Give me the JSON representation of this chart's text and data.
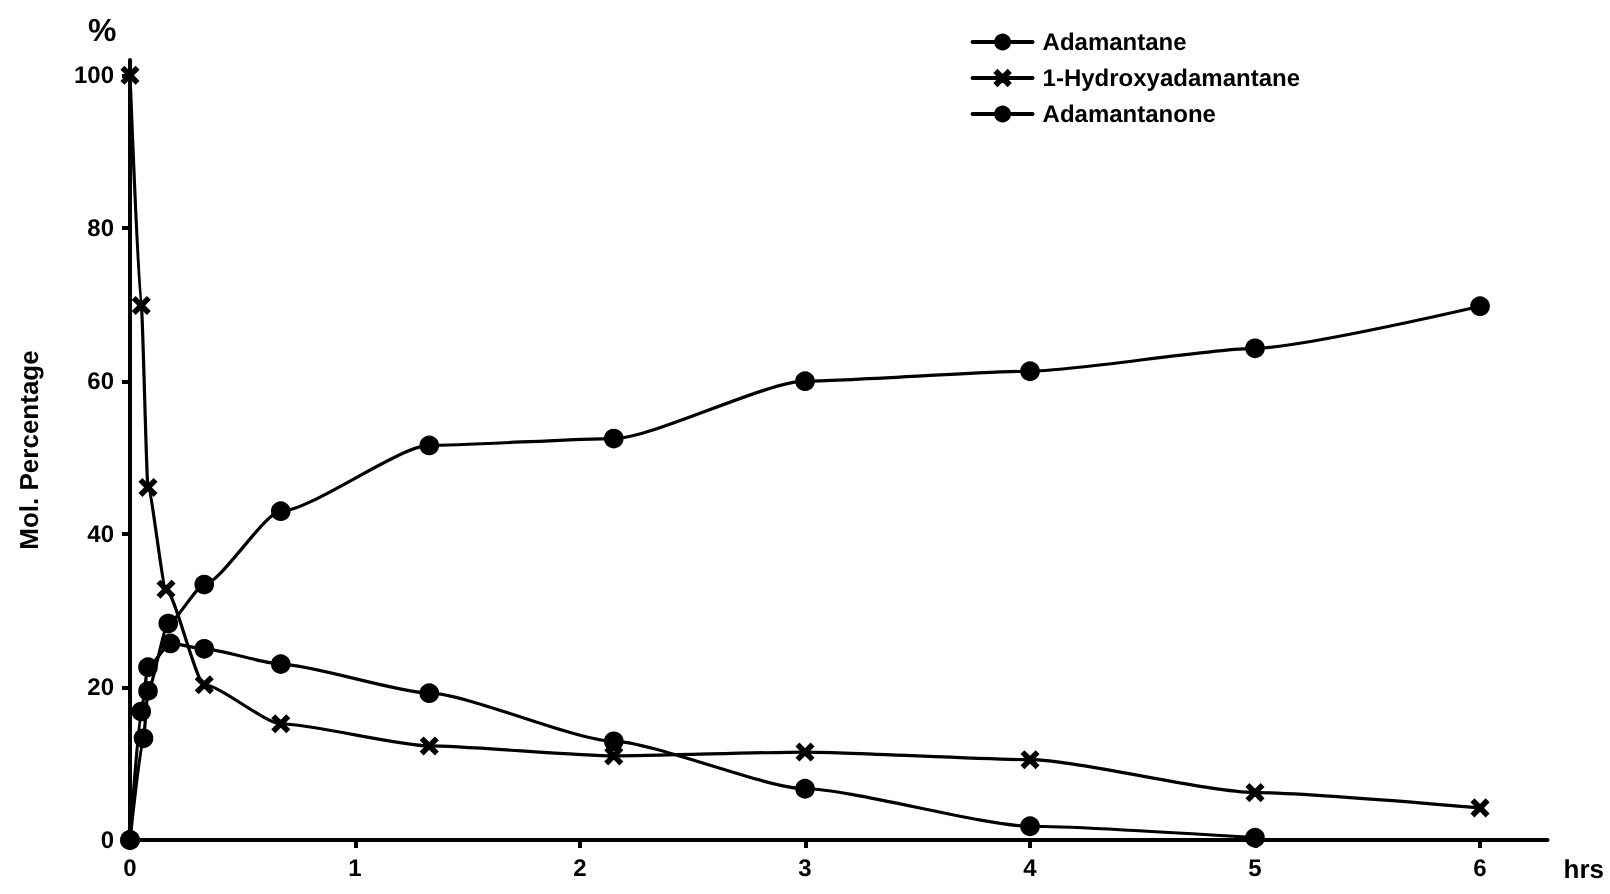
{
  "chart_data": {
    "type": "line",
    "xlabel": "hrs",
    "ylabel": "Mol. Percentage",
    "annotations": [
      "%"
    ],
    "xlim": [
      0,
      6.3
    ],
    "xticks": [
      0,
      1,
      2,
      3,
      4,
      5,
      6
    ],
    "ylim": [
      0,
      102
    ],
    "yticks": [
      0,
      20,
      40,
      60,
      80,
      100
    ],
    "grid": false,
    "legend": "top right",
    "line_style": "solid",
    "series": [
      {
        "name": "Adamantane",
        "color": "#000000",
        "marker": "circle",
        "x": [
          0,
          0.05,
          0.08,
          0.18,
          0.33,
          0.67,
          1.33,
          2.15,
          3,
          4,
          5
        ],
        "values": [
          0,
          16.8,
          22.6,
          25.7,
          25,
          23,
          19.2,
          12.9,
          6.7,
          1.8,
          0.3
        ]
      },
      {
        "name": "1-Hydroxyadamantane",
        "color": "#000000",
        "marker": "cross",
        "x": [
          0,
          0.05,
          0.08,
          0.16,
          0.33,
          0.67,
          1.33,
          2.15,
          3,
          4,
          5,
          6
        ],
        "values": [
          100,
          69.9,
          46.1,
          32.8,
          20.3,
          15.2,
          12.3,
          11,
          11.5,
          10.5,
          6.2,
          4.2
        ]
      },
      {
        "name": "Adamantanone",
        "color": "#000000",
        "marker": "circle",
        "x": [
          0,
          0.06,
          0.08,
          0.17,
          0.33,
          0.67,
          1.33,
          2.15,
          3,
          4,
          5,
          6
        ],
        "values": [
          0,
          13.3,
          19.5,
          28.3,
          33.4,
          43,
          51.6,
          52.5,
          60,
          61.3,
          64.3,
          69.8
        ]
      }
    ]
  }
}
